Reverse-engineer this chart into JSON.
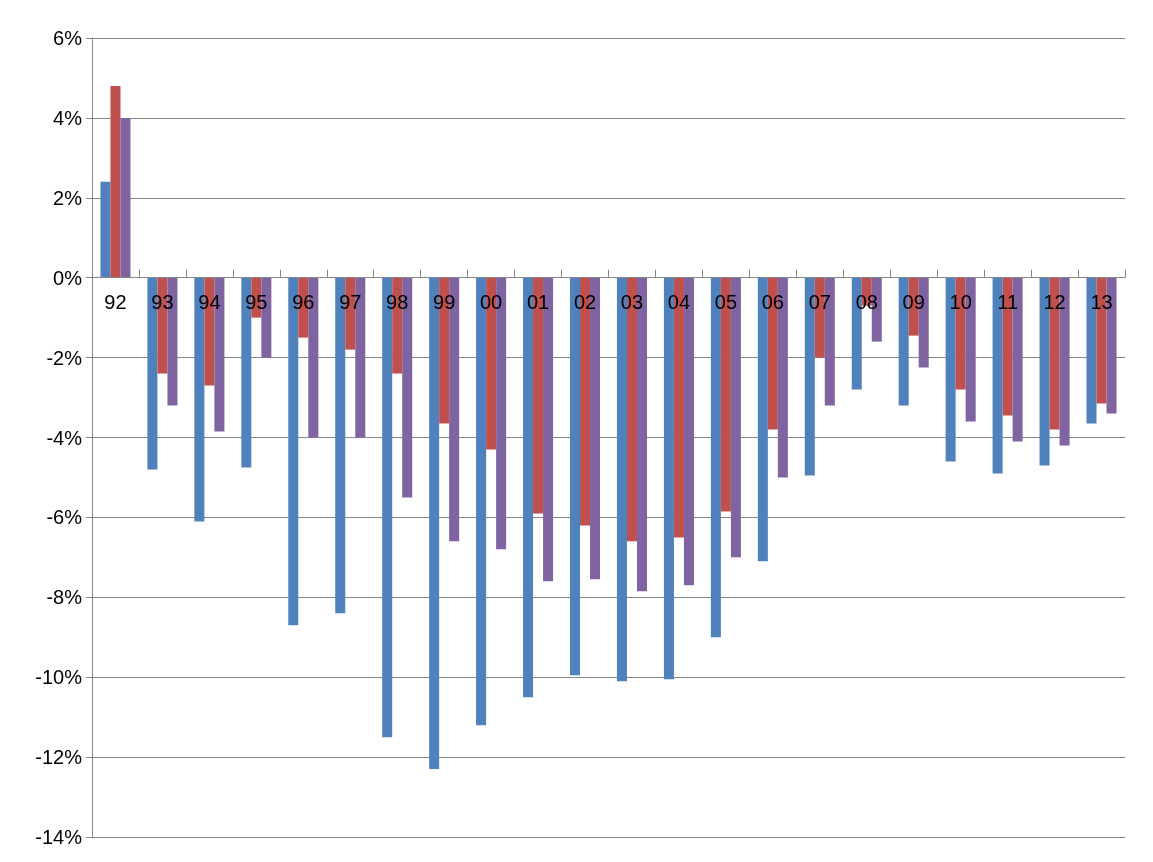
{
  "chart_data": {
    "type": "bar",
    "categories": [
      "92",
      "93",
      "94",
      "95",
      "96",
      "97",
      "98",
      "99",
      "00",
      "01",
      "02",
      "03",
      "04",
      "05",
      "06",
      "07",
      "08",
      "09",
      "10",
      "11",
      "12",
      "13"
    ],
    "series": [
      {
        "color": "#4f81bd",
        "values": [
          2.4,
          -4.8,
          -6.1,
          -4.75,
          -8.7,
          -8.4,
          -11.5,
          -12.3,
          -11.2,
          -10.5,
          -9.95,
          -10.1,
          -10.05,
          -9.0,
          -7.1,
          -4.95,
          -2.8,
          -3.2,
          -4.6,
          -4.9,
          -4.7,
          -3.65
        ]
      },
      {
        "color": "#c0504d",
        "values": [
          4.8,
          -2.4,
          -2.7,
          -1.0,
          -1.5,
          -1.8,
          -2.4,
          -3.65,
          -4.3,
          -5.9,
          -6.2,
          -6.6,
          -6.5,
          -5.85,
          -3.8,
          -2.0,
          -0.7,
          -1.45,
          -2.8,
          -3.45,
          -3.8,
          -3.15
        ]
      },
      {
        "color": "#8064a2",
        "values": [
          4.0,
          -3.2,
          -3.85,
          -2.0,
          -4.0,
          -4.0,
          -5.5,
          -6.6,
          -6.8,
          -7.6,
          -7.55,
          -7.85,
          -7.7,
          -7.0,
          -5.0,
          -3.2,
          -1.6,
          -2.25,
          -3.6,
          -4.1,
          -4.2,
          -3.4
        ]
      }
    ],
    "ylim": [
      -14,
      6
    ],
    "yticks": [
      {
        "value": -14,
        "label": "-14%"
      },
      {
        "value": -12,
        "label": "-12%"
      },
      {
        "value": -10,
        "label": "-10%"
      },
      {
        "value": -8,
        "label": "-8%"
      },
      {
        "value": -6,
        "label": "-6%"
      },
      {
        "value": -4,
        "label": "-4%"
      },
      {
        "value": -2,
        "label": "-2%"
      },
      {
        "value": 0,
        "label": "0%"
      },
      {
        "value": 2,
        "label": "2%"
      },
      {
        "value": 4,
        "label": "4%"
      },
      {
        "value": 6,
        "label": "6%"
      }
    ],
    "grid": "y"
  }
}
